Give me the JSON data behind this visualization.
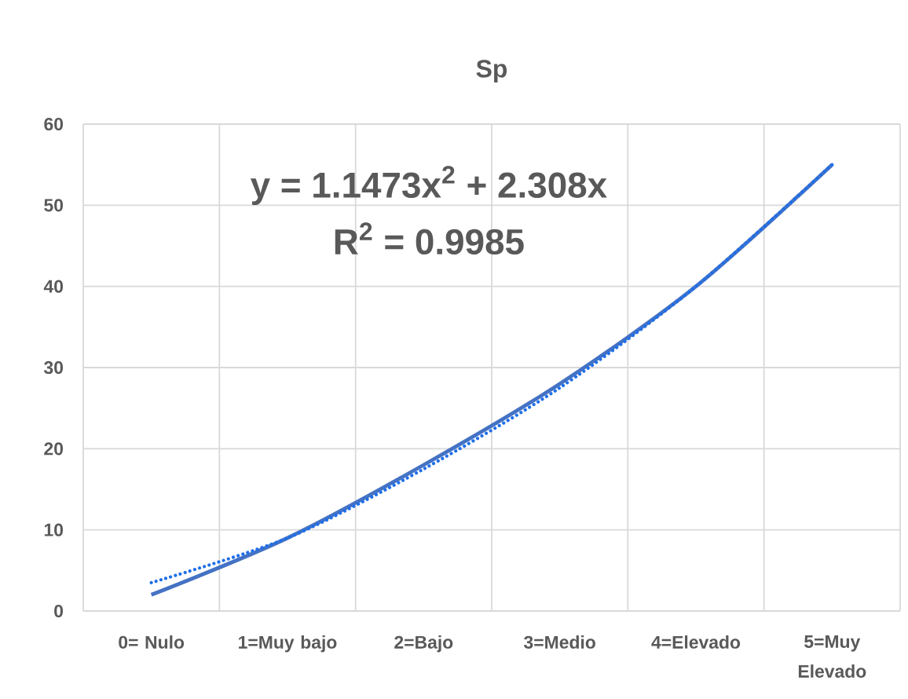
{
  "chart_data": {
    "type": "line",
    "title": "Sp",
    "categories": [
      "0= Nulo",
      "1=Muy bajo",
      "2=Bajo",
      "3=Medio",
      "4=Elevado",
      "5=Muy Elevado"
    ],
    "series": [
      {
        "color": "#4472c4",
        "values": [
          2,
          9,
          18,
          28,
          40,
          55
        ],
        "line_style": "solid"
      },
      {
        "color": "#1f6fe8",
        "values": [
          3.5,
          9,
          17.5,
          27.5,
          40,
          55
        ],
        "line_style": "dotted"
      }
    ],
    "ylim": [
      0,
      60
    ],
    "yticks": [
      0,
      10,
      20,
      30,
      40,
      50,
      60
    ],
    "grid": true,
    "marker": "none",
    "annotations": [
      "y = 1.1473x$^{2}$ + 2.308x",
      "R$^{2}$ = 0.9985"
    ]
  }
}
